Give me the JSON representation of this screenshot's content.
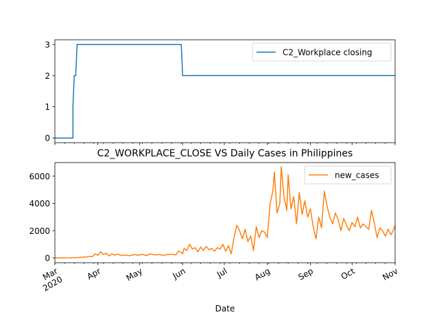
{
  "chart_data": [
    {
      "type": "line",
      "title": "",
      "xlabel": "",
      "ylabel": "",
      "xlim": [
        "2020-03-01",
        "2020-11-01"
      ],
      "ylim": [
        -0.15,
        3.15
      ],
      "yticks": [
        0,
        1,
        2,
        3
      ],
      "x_tick_labels_shown": false,
      "legend": {
        "position": "upper right",
        "entries": [
          "C2_Workplace closing"
        ]
      },
      "series": [
        {
          "name": "C2_Workplace closing",
          "color": "#1f77b4",
          "x": [
            "2020-03-01",
            "2020-03-14",
            "2020-03-14",
            "2020-03-15",
            "2020-03-16",
            "2020-03-17",
            "2020-05-31",
            "2020-06-01",
            "2020-11-01"
          ],
          "y": [
            0,
            0,
            1,
            2,
            2,
            3,
            3,
            2,
            2
          ]
        }
      ]
    },
    {
      "type": "line",
      "title": "C2_WORKPLACE_CLOSE VS Daily Cases in Philippines",
      "xlabel": "Date",
      "ylabel": "",
      "xlim": [
        "2020-03-01",
        "2020-11-01"
      ],
      "ylim": [
        -350,
        7000
      ],
      "yticks": [
        0,
        2000,
        4000,
        6000
      ],
      "ytick_labels": [
        "0",
        "2000",
        "4000",
        "6000"
      ],
      "xtick_dates": [
        "2020-03-01",
        "2020-04-01",
        "2020-05-01",
        "2020-06-01",
        "2020-07-01",
        "2020-08-01",
        "2020-09-01",
        "2020-10-01",
        "2020-11-01"
      ],
      "xtick_labels": [
        "Mar\n2020",
        "Apr",
        "May",
        "Jun",
        "Jul",
        "Aug",
        "Sep",
        "Oct",
        "Nov"
      ],
      "legend": {
        "position": "upper right",
        "entries": [
          "new_cases"
        ]
      },
      "series": [
        {
          "name": "new_cases",
          "color": "#ff7f0e",
          "x": [
            "2020-03-01",
            "2020-03-07",
            "2020-03-12",
            "2020-03-15",
            "2020-03-18",
            "2020-03-21",
            "2020-03-24",
            "2020-03-26",
            "2020-03-28",
            "2020-03-30",
            "2020-04-01",
            "2020-04-03",
            "2020-04-05",
            "2020-04-07",
            "2020-04-09",
            "2020-04-11",
            "2020-04-13",
            "2020-04-15",
            "2020-04-18",
            "2020-04-21",
            "2020-04-24",
            "2020-04-27",
            "2020-04-30",
            "2020-05-03",
            "2020-05-06",
            "2020-05-09",
            "2020-05-12",
            "2020-05-15",
            "2020-05-18",
            "2020-05-21",
            "2020-05-24",
            "2020-05-27",
            "2020-05-29",
            "2020-05-31",
            "2020-06-01",
            "2020-06-02",
            "2020-06-04",
            "2020-06-06",
            "2020-06-08",
            "2020-06-10",
            "2020-06-12",
            "2020-06-14",
            "2020-06-16",
            "2020-06-18",
            "2020-06-20",
            "2020-06-22",
            "2020-06-24",
            "2020-06-26",
            "2020-06-28",
            "2020-06-30",
            "2020-07-02",
            "2020-07-04",
            "2020-07-06",
            "2020-07-08",
            "2020-07-10",
            "2020-07-12",
            "2020-07-14",
            "2020-07-16",
            "2020-07-18",
            "2020-07-20",
            "2020-07-22",
            "2020-07-24",
            "2020-07-26",
            "2020-07-28",
            "2020-07-30",
            "2020-08-01",
            "2020-08-03",
            "2020-08-05",
            "2020-08-06",
            "2020-08-08",
            "2020-08-10",
            "2020-08-11",
            "2020-08-13",
            "2020-08-15",
            "2020-08-16",
            "2020-08-18",
            "2020-08-20",
            "2020-08-22",
            "2020-08-24",
            "2020-08-26",
            "2020-08-28",
            "2020-08-30",
            "2020-09-01",
            "2020-09-03",
            "2020-09-05",
            "2020-09-07",
            "2020-09-09",
            "2020-09-11",
            "2020-09-13",
            "2020-09-15",
            "2020-09-17",
            "2020-09-19",
            "2020-09-21",
            "2020-09-23",
            "2020-09-25",
            "2020-09-27",
            "2020-09-29",
            "2020-10-01",
            "2020-10-03",
            "2020-10-05",
            "2020-10-07",
            "2020-10-09",
            "2020-10-11",
            "2020-10-13",
            "2020-10-15",
            "2020-10-17",
            "2020-10-19",
            "2020-10-21",
            "2020-10-23",
            "2020-10-25",
            "2020-10-27",
            "2020-10-29",
            "2020-10-31",
            "2020-11-01"
          ],
          "y": [
            0,
            3,
            5,
            20,
            30,
            60,
            80,
            120,
            100,
            300,
            200,
            450,
            250,
            350,
            150,
            300,
            200,
            280,
            180,
            220,
            160,
            250,
            200,
            260,
            180,
            300,
            220,
            250,
            200,
            240,
            280,
            220,
            500,
            400,
            300,
            700,
            550,
            1000,
            650,
            750,
            450,
            800,
            550,
            850,
            600,
            700,
            500,
            750,
            650,
            1000,
            500,
            900,
            300,
            1500,
            2400,
            2000,
            1400,
            2100,
            1200,
            1600,
            550,
            2300,
            1500,
            2000,
            1900,
            1500,
            4000,
            4900,
            6300,
            3300,
            4000,
            6700,
            4500,
            3500,
            6100,
            3600,
            4500,
            2500,
            4800,
            3200,
            4200,
            3000,
            3600,
            2300,
            1400,
            3000,
            2200,
            4900,
            3800,
            3000,
            2500,
            3300,
            2800,
            2000,
            2900,
            2400,
            2000,
            2600,
            2300,
            3000,
            2200,
            2500,
            2300,
            2100,
            3500,
            2600,
            1500,
            2200,
            2000,
            1600,
            2100,
            1700,
            2100,
            2400
          ]
        }
      ]
    }
  ]
}
